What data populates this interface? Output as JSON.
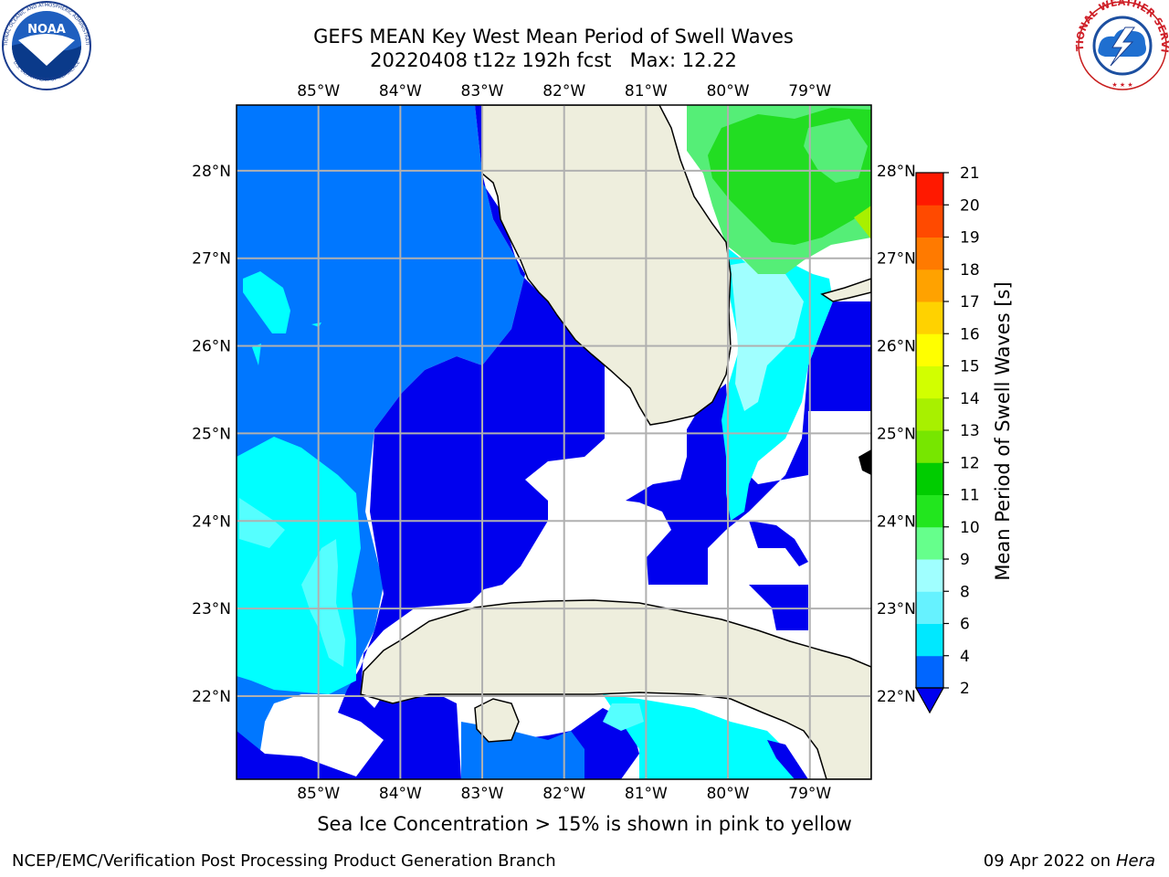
{
  "header": {
    "title_line1": "GEFS MEAN Key West Mean Period of Swell Waves",
    "title_line2_run": "20220408 t12z 192h fcst",
    "title_line2_max": "Max: 12.22"
  },
  "logos": {
    "noaa": {
      "text": "NOAA",
      "ring_text": "NATIONAL OCEANIC AND ATMOSPHERIC ADMINISTRATION",
      "ring_text_bottom": "U.S. DEPARTMENT OF COMMERCE",
      "icon": "noaa-logo"
    },
    "nws": {
      "ring_text": "NATIONAL WEATHER SERVICE",
      "icon": "nws-logo"
    }
  },
  "map": {
    "lon_labels": [
      "85°W",
      "84°W",
      "83°W",
      "82°W",
      "81°W",
      "80°W",
      "79°W"
    ],
    "lat_labels": [
      "28°N",
      "27°N",
      "26°N",
      "25°N",
      "24°N",
      "23°N",
      "22°N"
    ],
    "grid": true,
    "extent": {
      "lon": [
        -86.0,
        -78.25
      ],
      "lat": [
        21.05,
        28.75
      ]
    }
  },
  "colorbar": {
    "title": "Mean Period of Swell Waves [s]",
    "ticks": [
      "2",
      "4",
      "6",
      "8",
      "9",
      "10",
      "11",
      "12",
      "13",
      "14",
      "15",
      "16",
      "17",
      "18",
      "19",
      "20",
      "21"
    ],
    "colors": [
      "#0033ff",
      "#0066ff",
      "#00e8ff",
      "#66f2ff",
      "#a0ffff",
      "#66ff8c",
      "#22e61e",
      "#00cc00",
      "#77e600",
      "#a8f000",
      "#d2ff00",
      "#ffff00",
      "#ffd200",
      "#ffa200",
      "#ff7a00",
      "#ff4a00",
      "#ff1900",
      "#ff0000"
    ],
    "extend_color": "#0000ee"
  },
  "colors": {
    "land": "#eeeedd",
    "deep_blue": "#0000ee",
    "mid_blue": "#0077ff",
    "cyan": "#00ffff",
    "light_cyan": "#55ffff",
    "pale_cyan": "#a0ffff",
    "light_green": "#55ee77",
    "green": "#22dd22"
  },
  "ice_note": "Sea Ice Concentration > 15% is shown in pink to yellow",
  "footer": {
    "left": "NCEP/EMC/Verification Post Processing Product Generation Branch",
    "right_date": "09 Apr 2022 on ",
    "right_host": "Hera"
  }
}
